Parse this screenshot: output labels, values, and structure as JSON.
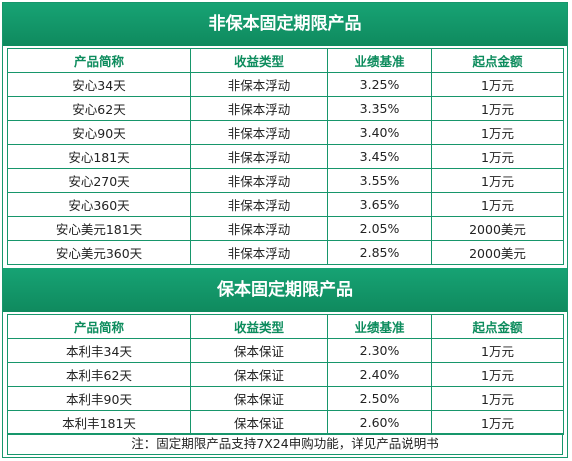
{
  "section1": {
    "title": "非保本固定期限产品",
    "headers": [
      "产品简称",
      "收益类型",
      "业绩基准",
      "起点金额"
    ],
    "rows": [
      [
        "安心34天",
        "非保本浮动",
        "3.25%",
        "1万元"
      ],
      [
        "安心62天",
        "非保本浮动",
        "3.35%",
        "1万元"
      ],
      [
        "安心90天",
        "非保本浮动",
        "3.40%",
        "1万元"
      ],
      [
        "安心181天",
        "非保本浮动",
        "3.45%",
        "1万元"
      ],
      [
        "安心270天",
        "非保本浮动",
        "3.55%",
        "1万元"
      ],
      [
        "安心360天",
        "非保本浮动",
        "3.65%",
        "1万元"
      ],
      [
        "安心美元181天",
        "非保本浮动",
        "2.05%",
        "2000美元"
      ],
      [
        "安心美元360天",
        "非保本浮动",
        "2.85%",
        "2000美元"
      ]
    ]
  },
  "section2": {
    "title": "保本固定期限产品",
    "headers": [
      "产品简称",
      "收益类型",
      "业绩基准",
      "起点金额"
    ],
    "rows": [
      [
        "本利丰34天",
        "保本保证",
        "2.30%",
        "1万元"
      ],
      [
        "本利丰62天",
        "保本保证",
        "2.40%",
        "1万元"
      ],
      [
        "本利丰90天",
        "保本保证",
        "2.50%",
        "1万元"
      ],
      [
        "本利丰181天",
        "保本保证",
        "2.60%",
        "1万元"
      ]
    ]
  },
  "note": "注：固定期限产品支持7X24申购功能，详见产品说明书",
  "colors": {
    "accent": "#17966b",
    "header_text": "#0d8c5d",
    "title_bg": "#119a6a"
  }
}
